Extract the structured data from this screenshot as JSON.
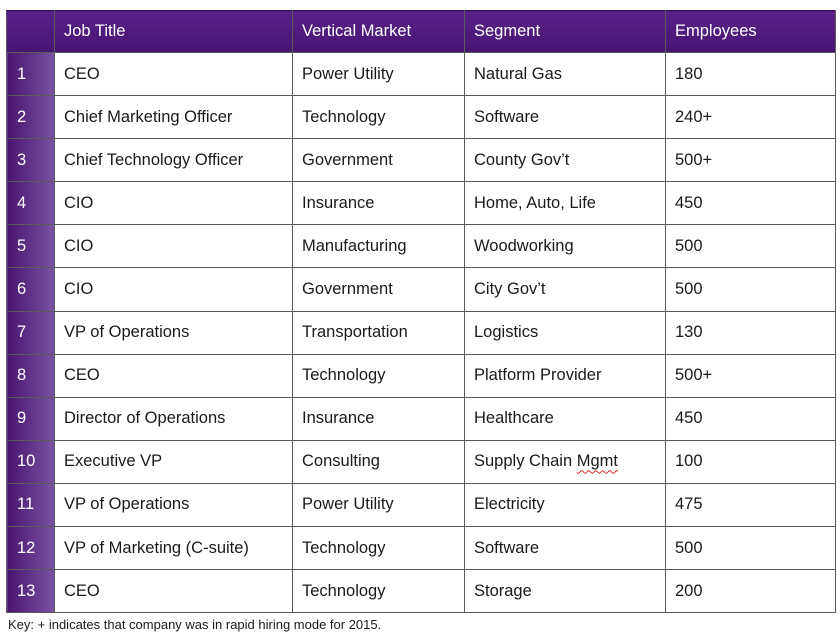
{
  "table": {
    "headers": [
      "",
      "Job Title",
      "Vertical Market",
      "Segment",
      "Employees"
    ],
    "rows": [
      {
        "num": "1",
        "job_title": "CEO",
        "vertical": "Power Utility",
        "segment": "Natural Gas",
        "employees": "180"
      },
      {
        "num": "2",
        "job_title": "Chief Marketing Officer",
        "vertical": "Technology",
        "segment": "Software",
        "employees": "240+"
      },
      {
        "num": "3",
        "job_title": "Chief Technology Officer",
        "vertical": "Government",
        "segment": "County Gov’t",
        "employees": "500+"
      },
      {
        "num": "4",
        "job_title": "CIO",
        "vertical": "Insurance",
        "segment": "Home, Auto, Life",
        "employees": "450"
      },
      {
        "num": "5",
        "job_title": "CIO",
        "vertical": "Manufacturing",
        "segment": "Woodworking",
        "employees": "500"
      },
      {
        "num": "6",
        "job_title": "CIO",
        "vertical": "Government",
        "segment": "City Gov’t",
        "employees": "500"
      },
      {
        "num": "7",
        "job_title": "VP of Operations",
        "vertical": "Transportation",
        "segment": "Logistics",
        "employees": "130"
      },
      {
        "num": "8",
        "job_title": "CEO",
        "vertical": "Technology",
        "segment": "Platform Provider",
        "employees": "500+"
      },
      {
        "num": "9",
        "job_title": "Director of Operations",
        "vertical": "Insurance",
        "segment": "Healthcare",
        "employees": "450"
      },
      {
        "num": "10",
        "job_title": "Executive VP",
        "vertical": "Consulting",
        "segment": "Supply Chain Mgmt",
        "employees": "100"
      },
      {
        "num": "11",
        "job_title": "VP of Operations",
        "vertical": "Power Utility",
        "segment": "Electricity",
        "employees": "475"
      },
      {
        "num": "12",
        "job_title": "VP of Marketing (C-suite)",
        "vertical": "Technology",
        "segment": "Software",
        "employees": "500"
      },
      {
        "num": "13",
        "job_title": "CEO",
        "vertical": "Technology",
        "segment": "Storage",
        "employees": "200"
      }
    ]
  },
  "footnote": "Key: + indicates that company was in rapid hiring mode for 2015.",
  "colors": {
    "header_bg": "#4f1a7d",
    "index_gradient_dark": "#4a1470",
    "index_gradient_light": "#7a52a3",
    "border": "#5a5a5a"
  }
}
